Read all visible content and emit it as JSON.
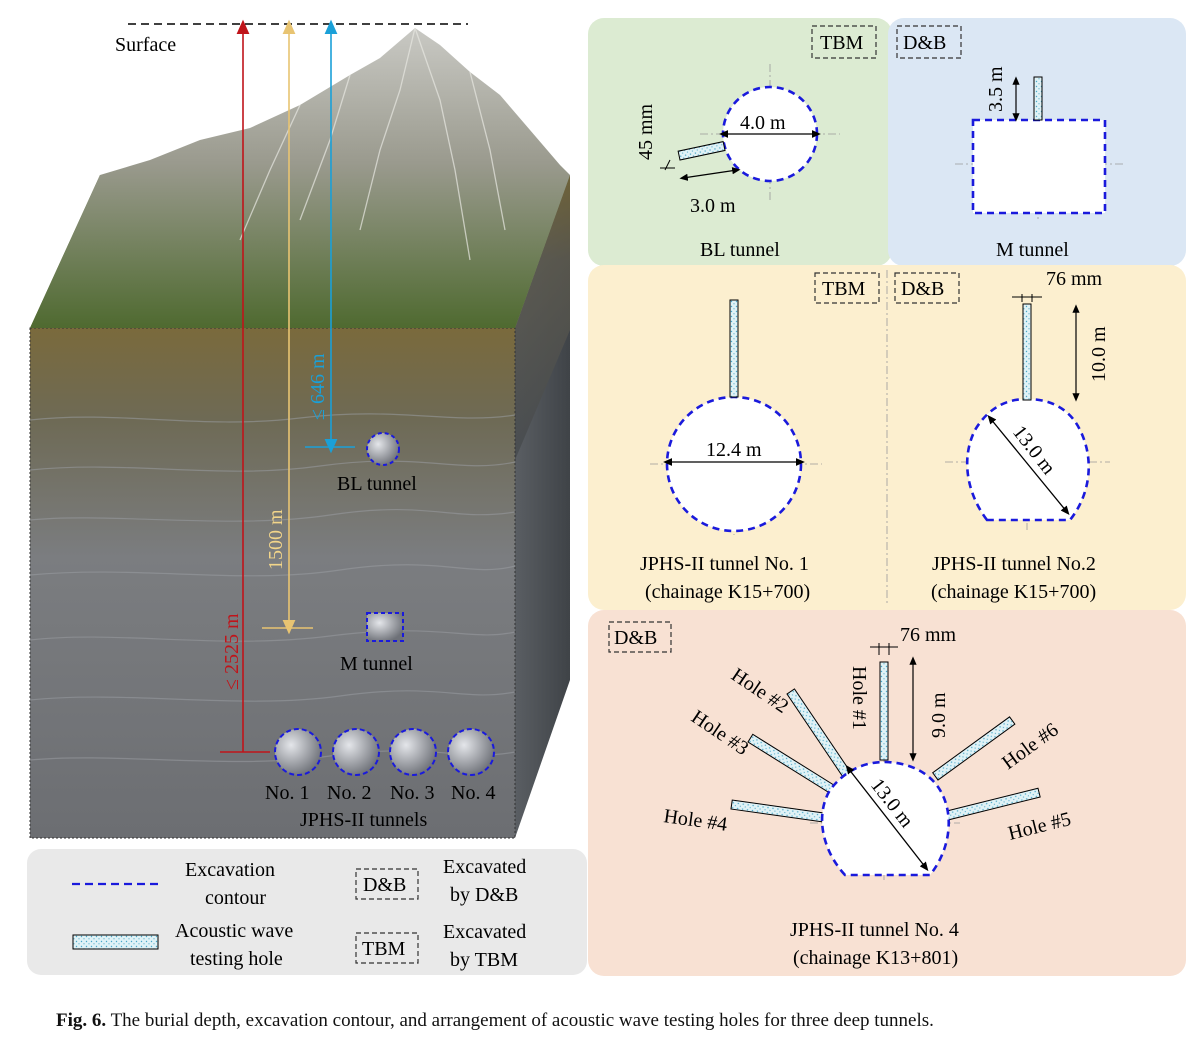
{
  "left": {
    "surface_label": "Surface",
    "depth_646": "≤ 646 m",
    "depth_1500": "1500 m",
    "depth_2525": "≤ 2525 m",
    "bl_label": "BL tunnel",
    "m_label": "M tunnel",
    "tunnels": [
      "No. 1",
      "No. 2",
      "No. 3",
      "No. 4"
    ],
    "jphs_label": "JPHS-II tunnels"
  },
  "legend": {
    "excavation_contour": [
      "Excavation",
      "contour"
    ],
    "acoustic_hole": [
      "Acoustic wave",
      "testing hole"
    ],
    "db_box": "D&B",
    "db_text": [
      "Excavated",
      "by D&B"
    ],
    "tbm_box": "TBM",
    "tbm_text": [
      "Excavated",
      "by TBM"
    ]
  },
  "panels": {
    "bl": {
      "tag": "TBM",
      "title": "BL tunnel",
      "dia": "4.0 m",
      "hole_w": "45 mm",
      "hole_len": "3.0 m"
    },
    "m": {
      "tag": "D&B",
      "title": "M tunnel",
      "hole_len": "3.5 m"
    },
    "no1": {
      "tag": "TBM",
      "title": [
        "JPHS-II tunnel No. 1",
        "(chainage K15+700)"
      ],
      "dia": "12.4 m"
    },
    "no2": {
      "tag": "D&B",
      "title": [
        "JPHS-II tunnel No.2",
        "(chainage K15+700)"
      ],
      "dia": "13.0 m",
      "hole_w": "76 mm",
      "hole_len": "10.0 m"
    },
    "no4": {
      "tag": "D&B",
      "title": [
        "JPHS-II tunnel No. 4",
        "(chainage K13+801)"
      ],
      "dia": "13.0 m",
      "hole_w": "76 mm",
      "hole_len": "9.0 m",
      "holes": [
        "Hole #1",
        "Hole #2",
        "Hole #3",
        "Hole #4",
        "Hole #5",
        "Hole #6"
      ]
    }
  },
  "caption": {
    "fig": "Fig. 6.",
    "text": "The burial depth, excavation contour, and arrangement of acoustic wave testing holes for three deep tunnels."
  },
  "colors": {
    "contour": "#1a1adc",
    "red_arrow": "#c0141a",
    "yellow_arrow": "#f2d58a",
    "blue_arrow": "#1aa0d8",
    "panel_green": "#dcebd2",
    "panel_blue": "#dbe7f4",
    "panel_yellow": "#fcefcf",
    "panel_salmon": "#f8e1d3",
    "legend_bg": "#e9e9e9",
    "hole_fill": "#e0f2f6"
  }
}
